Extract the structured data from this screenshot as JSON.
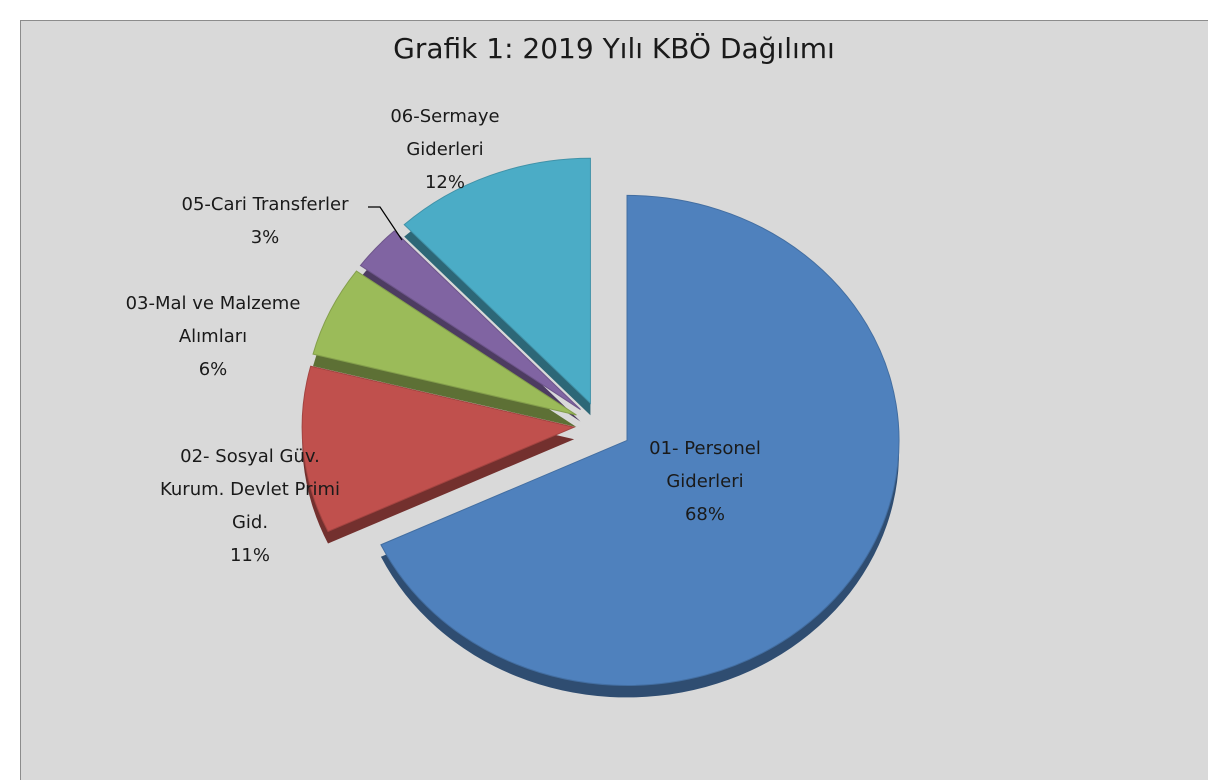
{
  "chart_data": {
    "type": "pie",
    "title": "Grafik 1: 2019 Yılı KBÖ Dağılımı",
    "categories": [
      "01- Personel Giderleri",
      "02- Sosyal Güv. Kurum. Devlet Primi Gid.",
      "03-Mal ve Malzeme Alımları",
      "05-Cari Transferler",
      "06-Sermaye Giderleri"
    ],
    "values": [
      68,
      11,
      6,
      3,
      12
    ],
    "value_labels": [
      "68%",
      "11%",
      "6%",
      "3%",
      "12%"
    ],
    "colors": [
      "#4f81bd",
      "#c0504d",
      "#9bbb59",
      "#8064a2",
      "#4bacc6"
    ]
  }
}
